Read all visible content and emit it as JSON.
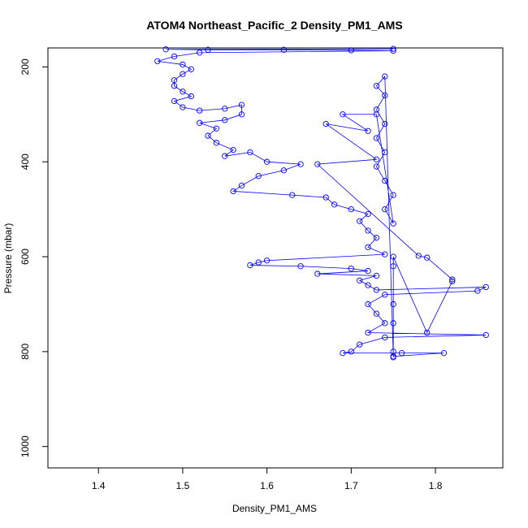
{
  "chart_data": {
    "type": "scatter",
    "title": "ATOM4 Northeast_Pacific_2 Density_PM1_AMS",
    "xlabel": "Density_PM1_AMS",
    "ylabel": "Pressure (mbar)",
    "xlim": [
      1.34,
      1.88
    ],
    "ylim": [
      1045,
      160
    ],
    "y_reversed": true,
    "x_ticks": [
      "1.4",
      "1.5",
      "1.6",
      "1.7",
      "1.8"
    ],
    "y_ticks": [
      "200",
      "400",
      "600",
      "800",
      "1000"
    ],
    "grid": false,
    "legend": "none",
    "series_style": "points connected by lines (type=o)",
    "color": "#0000ff",
    "series": [
      {
        "points": [
          [
            1.75,
            162
          ],
          [
            1.48,
            163
          ],
          [
            1.53,
            164
          ],
          [
            1.62,
            164
          ],
          [
            1.7,
            165
          ],
          [
            1.75,
            166
          ],
          [
            1.52,
            170
          ],
          [
            1.49,
            178
          ],
          [
            1.47,
            188
          ],
          [
            1.5,
            195
          ],
          [
            1.51,
            205
          ],
          [
            1.5,
            215
          ],
          [
            1.49,
            228
          ],
          [
            1.49,
            240
          ],
          [
            1.5,
            252
          ],
          [
            1.51,
            262
          ],
          [
            1.49,
            272
          ],
          [
            1.5,
            285
          ],
          [
            1.52,
            292
          ],
          [
            1.55,
            288
          ],
          [
            1.57,
            280
          ],
          [
            1.57,
            300
          ],
          [
            1.55,
            312
          ],
          [
            1.52,
            318
          ],
          [
            1.54,
            330
          ],
          [
            1.53,
            345
          ],
          [
            1.54,
            360
          ],
          [
            1.56,
            375
          ],
          [
            1.55,
            388
          ],
          [
            1.58,
            380
          ],
          [
            1.6,
            400
          ],
          [
            1.64,
            405
          ],
          [
            1.62,
            418
          ],
          [
            1.59,
            430
          ],
          [
            1.57,
            450
          ],
          [
            1.56,
            462
          ],
          [
            1.63,
            470
          ],
          [
            1.67,
            475
          ],
          [
            1.68,
            490
          ],
          [
            1.7,
            500
          ],
          [
            1.72,
            510
          ],
          [
            1.71,
            525
          ],
          [
            1.72,
            545
          ],
          [
            1.73,
            560
          ],
          [
            1.72,
            580
          ],
          [
            1.74,
            595
          ],
          [
            1.6,
            608
          ],
          [
            1.59,
            612
          ],
          [
            1.58,
            618
          ],
          [
            1.64,
            620
          ],
          [
            1.7,
            625
          ],
          [
            1.72,
            630
          ],
          [
            1.66,
            636
          ],
          [
            1.73,
            640
          ],
          [
            1.71,
            650
          ],
          [
            1.72,
            660
          ],
          [
            1.73,
            670
          ],
          [
            1.86,
            664
          ],
          [
            1.85,
            672
          ],
          [
            1.74,
            680
          ],
          [
            1.72,
            700
          ],
          [
            1.73,
            720
          ],
          [
            1.74,
            740
          ],
          [
            1.72,
            760
          ],
          [
            1.86,
            765
          ],
          [
            1.74,
            770
          ],
          [
            1.71,
            785
          ],
          [
            1.7,
            800
          ],
          [
            1.69,
            803
          ],
          [
            1.76,
            803
          ],
          [
            1.81,
            803
          ],
          [
            1.75,
            810
          ],
          [
            1.74,
            220
          ],
          [
            1.73,
            240
          ],
          [
            1.74,
            260
          ],
          [
            1.73,
            290
          ],
          [
            1.74,
            320
          ],
          [
            1.73,
            350
          ],
          [
            1.74,
            380
          ],
          [
            1.73,
            410
          ],
          [
            1.74,
            440
          ],
          [
            1.75,
            470
          ],
          [
            1.74,
            500
          ],
          [
            1.75,
            530
          ],
          [
            1.73,
            300
          ],
          [
            1.69,
            300
          ],
          [
            1.72,
            335
          ],
          [
            1.67,
            320
          ],
          [
            1.73,
            395
          ],
          [
            1.66,
            405
          ],
          [
            1.78,
            598
          ],
          [
            1.79,
            602
          ],
          [
            1.82,
            648
          ],
          [
            1.82,
            652
          ],
          [
            1.79,
            760
          ],
          [
            1.75,
            600
          ],
          [
            1.75,
            620
          ],
          [
            1.75,
            700
          ],
          [
            1.75,
            740
          ],
          [
            1.75,
            800
          ],
          [
            1.75,
            812
          ]
        ]
      }
    ]
  }
}
